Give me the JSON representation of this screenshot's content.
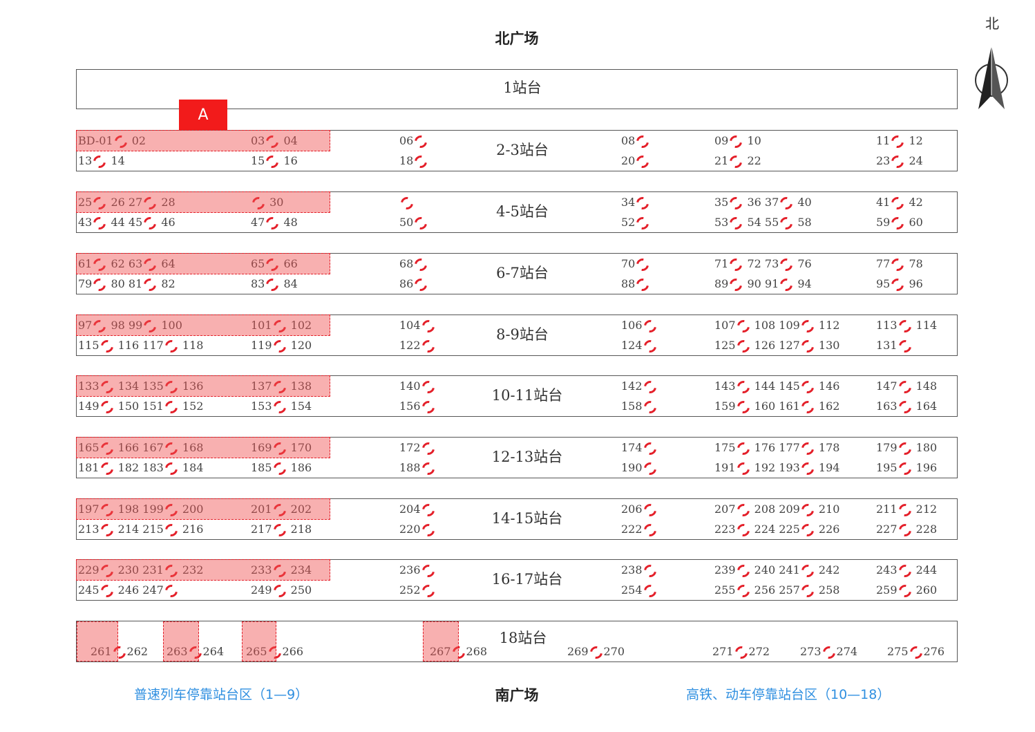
{
  "north_plaza": "北广场",
  "south_plaza": "南广场",
  "north_label": "北",
  "area_marker": "A",
  "legend": {
    "left": "普速列车停靠站台区（1—9）",
    "right": "高铁、动车停靠站台区（10—18）"
  },
  "colors": {
    "accent": "#e4202a",
    "highlight": "#f05050",
    "legend": "#2f8fe0"
  },
  "platform1": "1站台",
  "platforms": [
    {
      "label": "2-3站台",
      "top": [
        [
          "BD-01",
          "02"
        ],
        [
          "03",
          "04"
        ],
        [
          "06"
        ],
        [
          "08"
        ],
        [
          "09",
          "10"
        ],
        [
          "11",
          "12"
        ]
      ],
      "bottom": [
        [
          "13",
          "14"
        ],
        [
          "15",
          "16"
        ],
        [
          "18"
        ],
        [
          "20"
        ],
        [
          "21",
          "22"
        ],
        [
          "23",
          "24"
        ]
      ]
    },
    {
      "label": "4-5站台",
      "top": [
        [
          "25",
          "26",
          "27",
          "28"
        ],
        [
          "",
          "30"
        ],
        [
          ""
        ],
        [
          "34"
        ],
        [
          "35",
          "36",
          "37",
          "40"
        ],
        [
          "41",
          "42"
        ]
      ],
      "bottom": [
        [
          "43",
          "44",
          "45",
          "46"
        ],
        [
          "47",
          "48"
        ],
        [
          "50"
        ],
        [
          "52"
        ],
        [
          "53",
          "54",
          "55",
          "58"
        ],
        [
          "59",
          "60"
        ]
      ]
    },
    {
      "label": "6-7站台",
      "top": [
        [
          "61",
          "62",
          "63",
          "64"
        ],
        [
          "65",
          "66"
        ],
        [
          "68"
        ],
        [
          "70"
        ],
        [
          "71",
          "72",
          "73",
          "76"
        ],
        [
          "77",
          "78"
        ]
      ],
      "bottom": [
        [
          "79",
          "80",
          "81",
          "82"
        ],
        [
          "83",
          "84"
        ],
        [
          "86"
        ],
        [
          "88"
        ],
        [
          "89",
          "90",
          "91",
          "94"
        ],
        [
          "95",
          "96"
        ]
      ]
    },
    {
      "label": "8-9站台",
      "top": [
        [
          "97",
          "98",
          "99",
          "100"
        ],
        [
          "101",
          "102"
        ],
        [
          "104"
        ],
        [
          "106"
        ],
        [
          "107",
          "108",
          "109",
          "112"
        ],
        [
          "113",
          "114"
        ]
      ],
      "bottom": [
        [
          "115",
          "116",
          "117",
          "118"
        ],
        [
          "119",
          "120"
        ],
        [
          "122"
        ],
        [
          "124"
        ],
        [
          "125",
          "126",
          "127",
          "130"
        ],
        [
          "131",
          ""
        ]
      ]
    },
    {
      "label": "10-11站台",
      "top": [
        [
          "133",
          "134",
          "135",
          "136"
        ],
        [
          "137",
          "138"
        ],
        [
          "140"
        ],
        [
          "142"
        ],
        [
          "143",
          "144",
          "145",
          "146"
        ],
        [
          "147",
          "148"
        ]
      ],
      "bottom": [
        [
          "149",
          "150",
          "151",
          "152"
        ],
        [
          "153",
          "154"
        ],
        [
          "156"
        ],
        [
          "158"
        ],
        [
          "159",
          "160",
          "161",
          "162"
        ],
        [
          "163",
          "164"
        ]
      ]
    },
    {
      "label": "12-13站台",
      "top": [
        [
          "165",
          "166",
          "167",
          "168"
        ],
        [
          "169",
          "170"
        ],
        [
          "172"
        ],
        [
          "174"
        ],
        [
          "175",
          "176",
          "177",
          "178"
        ],
        [
          "179",
          "180"
        ]
      ],
      "bottom": [
        [
          "181",
          "182",
          "183",
          "184"
        ],
        [
          "185",
          "186"
        ],
        [
          "188"
        ],
        [
          "190"
        ],
        [
          "191",
          "192",
          "193",
          "194"
        ],
        [
          "195",
          "196"
        ]
      ]
    },
    {
      "label": "14-15站台",
      "top": [
        [
          "197",
          "198",
          "199",
          "200"
        ],
        [
          "201",
          "202"
        ],
        [
          "204"
        ],
        [
          "206"
        ],
        [
          "207",
          "208",
          "209",
          "210"
        ],
        [
          "211",
          "212"
        ]
      ],
      "bottom": [
        [
          "213",
          "214",
          "215",
          "216"
        ],
        [
          "217",
          "218"
        ],
        [
          "220"
        ],
        [
          "222"
        ],
        [
          "223",
          "224",
          "225",
          "226"
        ],
        [
          "227",
          "228"
        ]
      ]
    },
    {
      "label": "16-17站台",
      "top": [
        [
          "229",
          "230",
          "231",
          "232"
        ],
        [
          "233",
          "234"
        ],
        [
          "236"
        ],
        [
          "238"
        ],
        [
          "239",
          "240",
          "241",
          "242"
        ],
        [
          "243",
          "244"
        ]
      ],
      "bottom": [
        [
          "245",
          "246",
          "247",
          ""
        ],
        [
          "249",
          "250"
        ],
        [
          "252"
        ],
        [
          "254"
        ],
        [
          "255",
          "256",
          "257",
          "258"
        ],
        [
          "259",
          "260"
        ]
      ]
    }
  ],
  "platform18": {
    "label": "18站台",
    "slots": [
      [
        "261",
        "262"
      ],
      [
        "263",
        "264"
      ],
      [
        "265",
        "266"
      ],
      [
        "267",
        "268"
      ],
      [
        "269",
        "270"
      ],
      [
        "271",
        "272"
      ],
      [
        "273",
        "274"
      ],
      [
        "275",
        "276"
      ]
    ]
  }
}
